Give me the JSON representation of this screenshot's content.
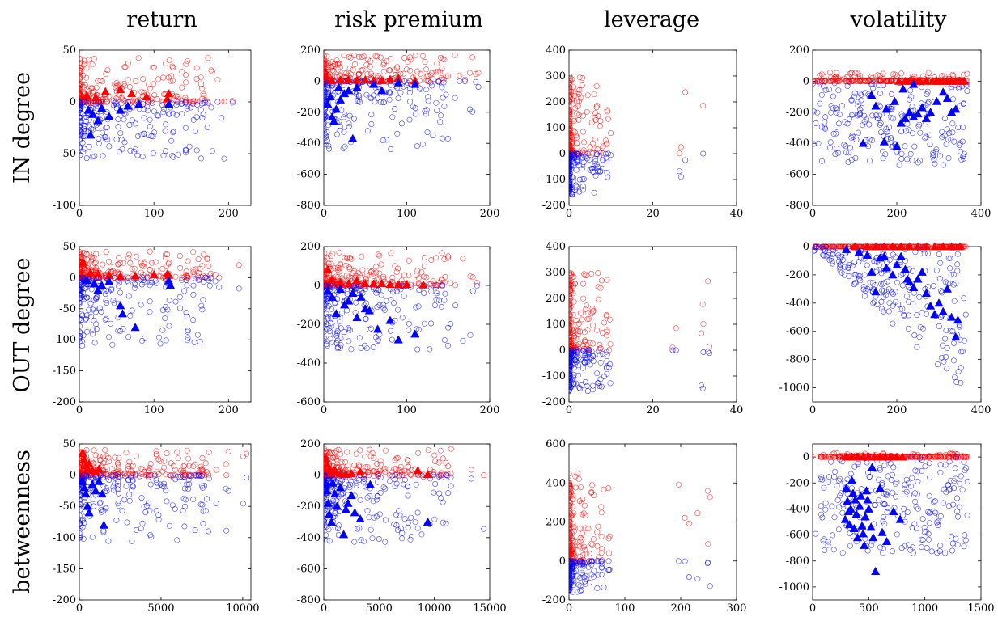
{
  "columns": [
    "return",
    "risk premium",
    "leverage",
    "volatility"
  ],
  "rows": [
    "IN degree",
    "OUT degree",
    "betweenness"
  ],
  "colors": {
    "positive": "#ff0000",
    "negative": "#0000ff",
    "axes": "#000000",
    "background": "#ffffff"
  },
  "chart_data": [
    {
      "type": "scatter",
      "row": 0,
      "col": 0,
      "xlim": [
        0,
        230
      ],
      "ylim": [
        -100,
        50
      ],
      "xticks": [
        0,
        100,
        200
      ],
      "yticks": [
        -100,
        -50,
        0,
        50
      ],
      "triangles_red": [
        [
          10,
          6
        ],
        [
          22,
          4
        ],
        [
          35,
          10
        ],
        [
          55,
          12
        ],
        [
          70,
          8
        ],
        [
          90,
          5
        ],
        [
          120,
          8
        ],
        [
          118,
          3
        ]
      ],
      "triangles_blue": [
        [
          12,
          -8
        ],
        [
          18,
          -12
        ],
        [
          25,
          -18
        ],
        [
          30,
          -6
        ],
        [
          40,
          -14
        ],
        [
          55,
          -8
        ],
        [
          65,
          -4
        ],
        [
          80,
          -2
        ],
        [
          120,
          -2
        ],
        [
          15,
          -32
        ]
      ]
    },
    {
      "type": "scatter",
      "row": 0,
      "col": 1,
      "xlim": [
        0,
        200
      ],
      "ylim": [
        -800,
        200
      ],
      "xticks": [
        0,
        100,
        200
      ],
      "yticks": [
        -800,
        -600,
        -400,
        -200,
        0,
        200
      ],
      "triangles_red": [
        [
          10,
          5
        ],
        [
          20,
          8
        ],
        [
          30,
          10
        ],
        [
          40,
          6
        ],
        [
          50,
          10
        ],
        [
          60,
          4
        ],
        [
          80,
          12
        ],
        [
          90,
          20
        ],
        [
          110,
          2
        ],
        [
          70,
          5
        ]
      ],
      "triangles_blue": [
        [
          5,
          -150
        ],
        [
          10,
          -230
        ],
        [
          15,
          -180
        ],
        [
          20,
          -120
        ],
        [
          25,
          -80
        ],
        [
          30,
          -60
        ],
        [
          12,
          -260
        ],
        [
          35,
          -370
        ],
        [
          8,
          -100
        ],
        [
          40,
          -40
        ],
        [
          60,
          -20
        ],
        [
          90,
          -10
        ],
        [
          110,
          -20
        ],
        [
          70,
          -60
        ],
        [
          18,
          -40
        ]
      ]
    },
    {
      "type": "scatter",
      "row": 0,
      "col": 2,
      "xlim": [
        0,
        40
      ],
      "ylim": [
        -200,
        400
      ],
      "xticks": [
        0,
        20,
        40
      ],
      "yticks": [
        -200,
        -100,
        0,
        100,
        200,
        300,
        400
      ],
      "triangles_red": [],
      "triangles_blue": []
    },
    {
      "type": "scatter",
      "row": 0,
      "col": 3,
      "xlim": [
        0,
        400
      ],
      "ylim": [
        -800,
        200
      ],
      "xticks": [
        0,
        200,
        400
      ],
      "yticks": [
        -800,
        -600,
        -400,
        -200,
        0,
        200
      ],
      "triangles_red": [
        [
          205,
          0
        ],
        [
          220,
          0
        ],
        [
          230,
          0
        ],
        [
          240,
          0
        ],
        [
          255,
          0
        ],
        [
          270,
          0
        ],
        [
          285,
          0
        ],
        [
          295,
          0
        ],
        [
          310,
          0
        ],
        [
          320,
          0
        ],
        [
          330,
          0
        ],
        [
          340,
          0
        ],
        [
          350,
          0
        ],
        [
          360,
          0
        ],
        [
          250,
          0
        ],
        [
          300,
          0
        ]
      ],
      "triangles_blue": [
        [
          140,
          -90
        ],
        [
          150,
          -160
        ],
        [
          175,
          -180
        ],
        [
          195,
          -130
        ],
        [
          210,
          -270
        ],
        [
          220,
          -240
        ],
        [
          230,
          -200
        ],
        [
          240,
          -230
        ],
        [
          250,
          -210
        ],
        [
          260,
          -170
        ],
        [
          270,
          -240
        ],
        [
          280,
          -200
        ],
        [
          295,
          -130
        ],
        [
          310,
          -70
        ],
        [
          320,
          -110
        ],
        [
          330,
          -200
        ],
        [
          340,
          -180
        ],
        [
          200,
          -420
        ],
        [
          170,
          -390
        ],
        [
          120,
          -400
        ],
        [
          215,
          -50
        ],
        [
          240,
          -20
        ]
      ]
    },
    {
      "type": "scatter",
      "row": 1,
      "col": 0,
      "xlim": [
        0,
        230
      ],
      "ylim": [
        -200,
        50
      ],
      "xticks": [
        0,
        100,
        200
      ],
      "yticks": [
        -200,
        -150,
        -100,
        -50,
        0,
        50
      ],
      "triangles_red": [
        [
          5,
          25
        ],
        [
          15,
          8
        ],
        [
          25,
          6
        ],
        [
          40,
          4
        ],
        [
          55,
          2
        ],
        [
          75,
          3
        ],
        [
          100,
          5
        ],
        [
          118,
          6
        ],
        [
          120,
          4
        ]
      ],
      "triangles_blue": [
        [
          10,
          -4
        ],
        [
          20,
          -10
        ],
        [
          30,
          -12
        ],
        [
          25,
          -20
        ],
        [
          40,
          -6
        ],
        [
          55,
          -45
        ],
        [
          58,
          -58
        ],
        [
          75,
          -80
        ],
        [
          120,
          -5
        ],
        [
          122,
          -12
        ]
      ]
    },
    {
      "type": "scatter",
      "row": 1,
      "col": 1,
      "xlim": [
        0,
        200
      ],
      "ylim": [
        -600,
        200
      ],
      "xticks": [
        0,
        100,
        200
      ],
      "yticks": [
        -600,
        -400,
        -200,
        0,
        200
      ],
      "triangles_red": [
        [
          5,
          80
        ],
        [
          10,
          30
        ],
        [
          20,
          15
        ],
        [
          30,
          8
        ],
        [
          40,
          25
        ],
        [
          50,
          10
        ],
        [
          60,
          8
        ],
        [
          70,
          10
        ],
        [
          80,
          5
        ],
        [
          90,
          4
        ],
        [
          100,
          5
        ],
        [
          120,
          3
        ]
      ],
      "triangles_blue": [
        [
          5,
          -30
        ],
        [
          10,
          -60
        ],
        [
          15,
          -145
        ],
        [
          25,
          -100
        ],
        [
          30,
          -80
        ],
        [
          35,
          -40
        ],
        [
          40,
          -165
        ],
        [
          50,
          -120
        ],
        [
          55,
          -130
        ],
        [
          65,
          -225
        ],
        [
          80,
          -180
        ],
        [
          90,
          -280
        ],
        [
          110,
          -250
        ],
        [
          20,
          -20
        ],
        [
          45,
          -60
        ]
      ]
    },
    {
      "type": "scatter",
      "row": 1,
      "col": 2,
      "xlim": [
        0,
        40
      ],
      "ylim": [
        -200,
        400
      ],
      "xticks": [
        0,
        20,
        40
      ],
      "yticks": [
        -200,
        -100,
        0,
        100,
        200,
        300,
        400
      ],
      "triangles_red": [],
      "triangles_blue": []
    },
    {
      "type": "scatter",
      "row": 1,
      "col": 3,
      "xlim": [
        0,
        400
      ],
      "ylim": [
        -1100,
        0
      ],
      "xticks": [
        0,
        200,
        400
      ],
      "yticks": [
        -1000,
        -800,
        -600,
        -400,
        -200,
        0
      ],
      "triangles_red": [
        [
          100,
          0
        ],
        [
          130,
          0
        ],
        [
          150,
          0
        ],
        [
          170,
          0
        ],
        [
          190,
          0
        ],
        [
          210,
          0
        ],
        [
          230,
          0
        ],
        [
          250,
          0
        ],
        [
          270,
          0
        ],
        [
          290,
          0
        ],
        [
          310,
          0
        ],
        [
          330,
          0
        ],
        [
          350,
          0
        ]
      ],
      "triangles_blue": [
        [
          80,
          -20
        ],
        [
          110,
          -40
        ],
        [
          130,
          -60
        ],
        [
          140,
          -180
        ],
        [
          150,
          -320
        ],
        [
          160,
          -80
        ],
        [
          170,
          -70
        ],
        [
          175,
          -150
        ],
        [
          190,
          -200
        ],
        [
          200,
          -130
        ],
        [
          210,
          -70
        ],
        [
          220,
          -160
        ],
        [
          225,
          -230
        ],
        [
          230,
          -250
        ],
        [
          240,
          -290
        ],
        [
          250,
          -230
        ],
        [
          260,
          -180
        ],
        [
          270,
          -330
        ],
        [
          280,
          -420
        ],
        [
          290,
          -480
        ],
        [
          300,
          -400
        ],
        [
          310,
          -460
        ],
        [
          320,
          -300
        ],
        [
          330,
          -500
        ],
        [
          340,
          -640
        ],
        [
          345,
          -520
        ]
      ]
    },
    {
      "type": "scatter",
      "row": 2,
      "col": 0,
      "xlim": [
        0,
        10500
      ],
      "ylim": [
        -200,
        50
      ],
      "xticks": [
        0,
        5000,
        10000
      ],
      "yticks": [
        -200,
        -150,
        -100,
        -50,
        0,
        50
      ],
      "triangles_red": [
        [
          200,
          35
        ],
        [
          300,
          25
        ],
        [
          400,
          15
        ],
        [
          500,
          10
        ],
        [
          600,
          18
        ],
        [
          800,
          8
        ],
        [
          1000,
          5
        ],
        [
          1200,
          10
        ]
      ],
      "triangles_blue": [
        [
          200,
          -10
        ],
        [
          300,
          -20
        ],
        [
          400,
          -30
        ],
        [
          500,
          -50
        ],
        [
          600,
          -60
        ],
        [
          800,
          -15
        ],
        [
          1000,
          -25
        ],
        [
          1200,
          -10
        ],
        [
          1500,
          -80
        ],
        [
          1400,
          -30
        ]
      ]
    },
    {
      "type": "scatter",
      "row": 2,
      "col": 1,
      "xlim": [
        0,
        15000
      ],
      "ylim": [
        -800,
        200
      ],
      "xticks": [
        0,
        5000,
        10000,
        15000
      ],
      "yticks": [
        -800,
        -600,
        -400,
        -200,
        0,
        200
      ],
      "triangles_red": [
        [
          200,
          110
        ],
        [
          300,
          70
        ],
        [
          500,
          40
        ],
        [
          800,
          20
        ],
        [
          1000,
          30
        ],
        [
          1500,
          10
        ],
        [
          2000,
          5
        ],
        [
          2500,
          10
        ],
        [
          3300,
          20
        ],
        [
          8500,
          30
        ],
        [
          9400,
          5
        ]
      ],
      "triangles_blue": [
        [
          200,
          -60
        ],
        [
          300,
          -100
        ],
        [
          400,
          -180
        ],
        [
          500,
          -250
        ],
        [
          700,
          -300
        ],
        [
          800,
          -50
        ],
        [
          1000,
          -120
        ],
        [
          1200,
          -200
        ],
        [
          1500,
          -80
        ],
        [
          1800,
          -380
        ],
        [
          2000,
          -220
        ],
        [
          2200,
          -180
        ],
        [
          2500,
          -130
        ],
        [
          2800,
          -240
        ],
        [
          3300,
          -280
        ],
        [
          4200,
          -60
        ],
        [
          9400,
          -300
        ]
      ]
    },
    {
      "type": "scatter",
      "row": 2,
      "col": 2,
      "xlim": [
        0,
        300
      ],
      "ylim": [
        -200,
        600
      ],
      "xticks": [
        0,
        100,
        200,
        300
      ],
      "yticks": [
        -200,
        0,
        200,
        400,
        600
      ],
      "triangles_red": [],
      "triangles_blue": []
    },
    {
      "type": "scatter",
      "row": 2,
      "col": 3,
      "xlim": [
        0,
        1500
      ],
      "ylim": [
        -1100,
        100
      ],
      "xticks": [
        0,
        500,
        1000,
        1500
      ],
      "yticks": [
        -1000,
        -800,
        -600,
        -400,
        -200,
        0
      ],
      "triangles_red": [
        [
          300,
          0
        ],
        [
          350,
          0
        ],
        [
          400,
          0
        ],
        [
          450,
          0
        ],
        [
          500,
          0
        ],
        [
          550,
          0
        ],
        [
          600,
          0
        ],
        [
          650,
          0
        ],
        [
          700,
          0
        ],
        [
          750,
          0
        ],
        [
          800,
          0
        ]
      ],
      "triangles_blue": [
        [
          290,
          -480
        ],
        [
          300,
          -240
        ],
        [
          310,
          -340
        ],
        [
          320,
          -420
        ],
        [
          330,
          -520
        ],
        [
          340,
          -400
        ],
        [
          350,
          -180
        ],
        [
          360,
          -280
        ],
        [
          370,
          -550
        ],
        [
          380,
          -330
        ],
        [
          390,
          -440
        ],
        [
          400,
          -620
        ],
        [
          420,
          -380
        ],
        [
          430,
          -300
        ],
        [
          440,
          -530
        ],
        [
          450,
          -590
        ],
        [
          460,
          -680
        ],
        [
          470,
          -460
        ],
        [
          480,
          -260
        ],
        [
          490,
          -330
        ],
        [
          500,
          -400
        ],
        [
          520,
          -540
        ],
        [
          540,
          -620
        ],
        [
          560,
          -880
        ],
        [
          600,
          -240
        ],
        [
          620,
          -580
        ],
        [
          660,
          -650
        ],
        [
          720,
          -420
        ],
        [
          780,
          -480
        ],
        [
          530,
          -80
        ]
      ]
    }
  ]
}
